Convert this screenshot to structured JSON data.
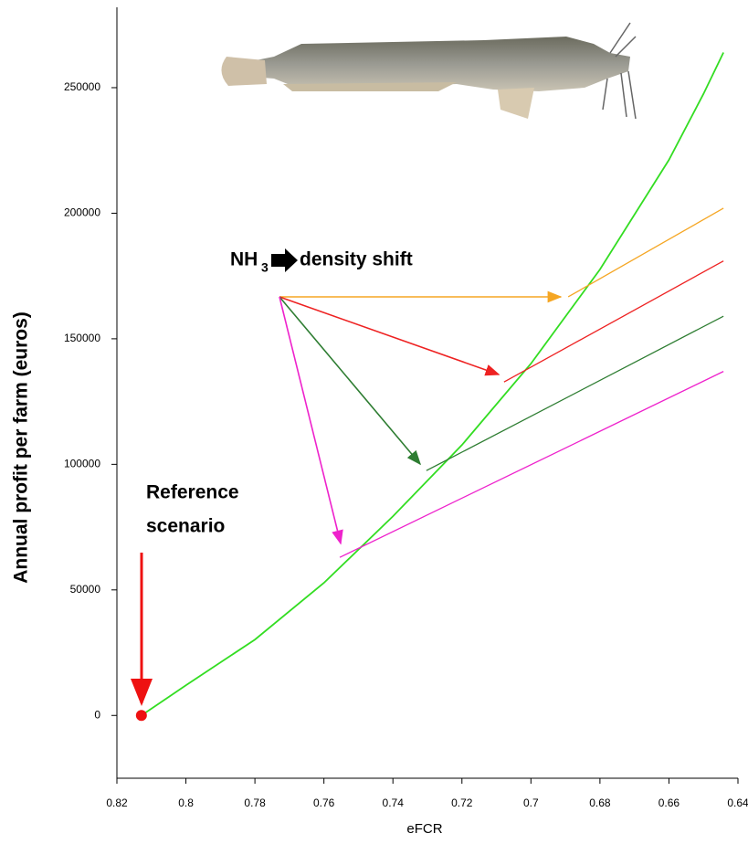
{
  "chart_data": {
    "type": "line",
    "xlabel": "eFCR",
    "ylabel": "Annual profit per farm (euros)",
    "xlim": [
      0.82,
      0.64
    ],
    "ylim": [
      -25000,
      282000
    ],
    "xticks": [
      0.82,
      0.8,
      0.78,
      0.76,
      0.74,
      0.72,
      0.7,
      0.68,
      0.66,
      0.64
    ],
    "yticks": [
      0,
      50000,
      100000,
      150000,
      200000,
      250000
    ],
    "series": [
      {
        "color": "#33dd22",
        "x": [
          0.8129,
          0.8,
          0.78,
          0.76,
          0.74,
          0.72,
          0.7,
          0.68,
          0.66,
          0.65,
          0.6442
        ],
        "values": [
          0,
          12000,
          30200,
          52800,
          79300,
          107700,
          140100,
          177600,
          221250,
          247500,
          264000
        ]
      },
      {
        "color": "#f5a623",
        "x": [
          0.6892,
          0.6442
        ],
        "values": [
          166700,
          202000
        ]
      },
      {
        "color": "#ee2222",
        "x": [
          0.7078,
          0.6442
        ],
        "values": [
          132800,
          181000
        ]
      },
      {
        "color": "#2e7d32",
        "x": [
          0.7303,
          0.6442
        ],
        "values": [
          97500,
          159000
        ]
      },
      {
        "color": "#ee22cc",
        "x": [
          0.7554,
          0.6442
        ],
        "values": [
          62950,
          137000
        ]
      }
    ],
    "reference_point": {
      "x": 0.8129,
      "y": 0,
      "color": "#ee1111"
    },
    "annotations": {
      "nh": "NH",
      "sub": "3",
      "shift": "density shift",
      "reference": [
        "Reference",
        "scenario"
      ]
    }
  }
}
